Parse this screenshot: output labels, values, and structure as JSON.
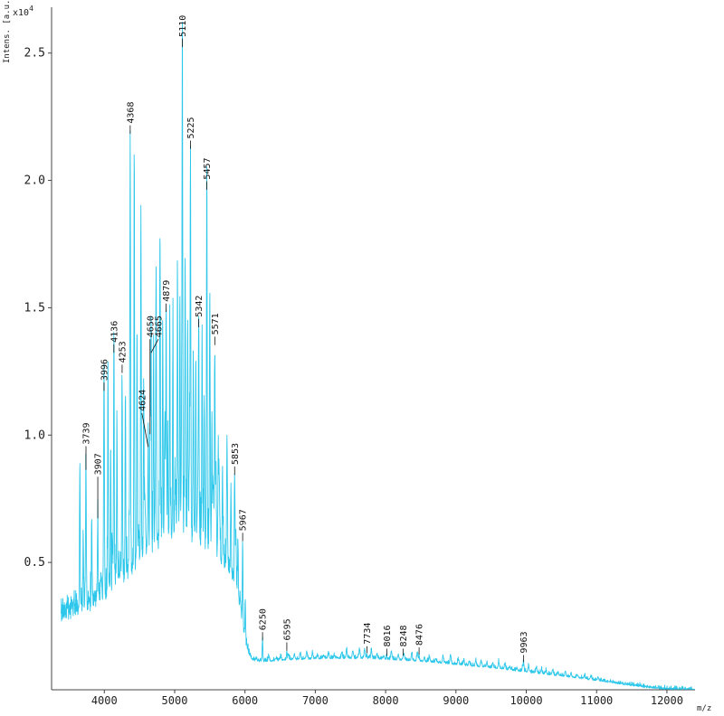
{
  "chart_data": {
    "type": "line",
    "subtype": "mass-spectrum",
    "title": "",
    "xlabel": "m/z",
    "ylabel": "Intens. [a.u.]",
    "y_scale_label": "x10",
    "y_scale_exp": "4",
    "xlim": [
      3250,
      12400
    ],
    "ylim": [
      0,
      2.68
    ],
    "x_ticks": [
      4000,
      5000,
      6000,
      7000,
      8000,
      9000,
      10000,
      11000,
      12000
    ],
    "y_ticks": [
      0.5,
      1.0,
      1.5,
      2.0,
      2.5
    ],
    "grid": false,
    "legend": false,
    "line_color": "#2cc7ea",
    "axis_color": "#444444",
    "label_color": "#111111",
    "background": "#ffffff",
    "labeled_peaks": [
      {
        "mz": 3739,
        "intensity": 0.86,
        "label_y": 0.96
      },
      {
        "mz": 3907,
        "intensity": 0.67,
        "label_y": 0.84
      },
      {
        "mz": 3996,
        "intensity": 1.17,
        "label_y": 1.21
      },
      {
        "mz": 4136,
        "intensity": 1.32,
        "label_y": 1.36
      },
      {
        "mz": 4253,
        "intensity": 1.24,
        "label_y": 1.28
      },
      {
        "mz": 4368,
        "intensity": 2.18,
        "label_y": 2.22
      },
      {
        "mz": 4624,
        "intensity": 0.95,
        "label_y": 1.09,
        "label_dx": -7
      },
      {
        "mz": 4650,
        "intensity": 1.0,
        "label_y": 1.38,
        "label_dx": 0
      },
      {
        "mz": 4665,
        "intensity": 1.32,
        "label_y": 1.38,
        "label_dx": 8
      },
      {
        "mz": 4879,
        "intensity": 1.48,
        "label_y": 1.52
      },
      {
        "mz": 5110,
        "intensity": 2.52,
        "label_y": 2.56
      },
      {
        "mz": 5225,
        "intensity": 2.12,
        "label_y": 2.16
      },
      {
        "mz": 5342,
        "intensity": 1.42,
        "label_y": 1.46
      },
      {
        "mz": 5457,
        "intensity": 1.96,
        "label_y": 2.0
      },
      {
        "mz": 5571,
        "intensity": 1.35,
        "label_y": 1.39
      },
      {
        "mz": 5853,
        "intensity": 0.84,
        "label_y": 0.88
      },
      {
        "mz": 5967,
        "intensity": 0.58,
        "label_y": 0.62
      },
      {
        "mz": 6250,
        "intensity": 0.19,
        "label_y": 0.23
      },
      {
        "mz": 6595,
        "intensity": 0.15,
        "label_y": 0.19
      },
      {
        "mz": 7734,
        "intensity": 0.14,
        "label_y": 0.175
      },
      {
        "mz": 8016,
        "intensity": 0.13,
        "label_y": 0.165
      },
      {
        "mz": 8248,
        "intensity": 0.13,
        "label_y": 0.165
      },
      {
        "mz": 8476,
        "intensity": 0.135,
        "label_y": 0.17
      },
      {
        "mz": 9963,
        "intensity": 0.105,
        "label_y": 0.14
      }
    ],
    "unlabeled_peaks": [
      {
        "mz": 3652,
        "intensity": 0.86
      },
      {
        "mz": 3700,
        "intensity": 0.62
      },
      {
        "mz": 3820,
        "intensity": 0.6
      },
      {
        "mz": 4052,
        "intensity": 1.18
      },
      {
        "mz": 4090,
        "intensity": 0.95
      },
      {
        "mz": 4180,
        "intensity": 1.05
      },
      {
        "mz": 4300,
        "intensity": 1.12
      },
      {
        "mz": 4425,
        "intensity": 2.08
      },
      {
        "mz": 4465,
        "intensity": 1.45
      },
      {
        "mz": 4520,
        "intensity": 1.55
      },
      {
        "mz": 4560,
        "intensity": 1.25
      },
      {
        "mz": 4700,
        "intensity": 1.4
      },
      {
        "mz": 4737,
        "intensity": 1.52
      },
      {
        "mz": 4790,
        "intensity": 1.65
      },
      {
        "mz": 4830,
        "intensity": 1.45
      },
      {
        "mz": 4930,
        "intensity": 1.5
      },
      {
        "mz": 4975,
        "intensity": 1.4
      },
      {
        "mz": 5040,
        "intensity": 1.7
      },
      {
        "mz": 5075,
        "intensity": 1.55
      },
      {
        "mz": 5150,
        "intensity": 1.6
      },
      {
        "mz": 5185,
        "intensity": 1.45
      },
      {
        "mz": 5265,
        "intensity": 1.35
      },
      {
        "mz": 5300,
        "intensity": 1.28
      },
      {
        "mz": 5390,
        "intensity": 1.3
      },
      {
        "mz": 5420,
        "intensity": 1.15
      },
      {
        "mz": 5500,
        "intensity": 1.22
      },
      {
        "mz": 5530,
        "intensity": 1.08
      },
      {
        "mz": 5620,
        "intensity": 0.95
      },
      {
        "mz": 5680,
        "intensity": 0.85
      },
      {
        "mz": 5745,
        "intensity": 0.78
      },
      {
        "mz": 5800,
        "intensity": 0.7
      },
      {
        "mz": 5900,
        "intensity": 0.6
      }
    ]
  }
}
